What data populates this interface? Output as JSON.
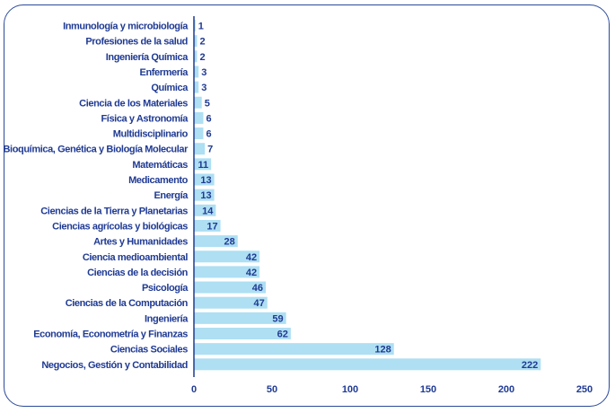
{
  "chart_data": {
    "type": "bar",
    "orientation": "horizontal",
    "categories": [
      "Inmunología y microbiología",
      "Profesiones de la salud",
      "Ingeniería Química",
      "Enfermería",
      "Química",
      "Ciencia de los Materiales",
      "Física y Astronomía",
      "Multidisciplinario",
      "Bioquímica, Genética y Biología Molecular",
      "Matemáticas",
      "Medicamento",
      "Energía",
      "Ciencias de la Tierra y Planetarias",
      "Ciencias agrícolas y biológicas",
      "Artes y Humanidades",
      "Ciencia medioambiental",
      "Ciencias de la decisión",
      "Psicología",
      "Ciencias de la Computación",
      "Ingeniería",
      "Economía, Econometría y Finanzas",
      "Ciencias Sociales",
      "Negocios, Gestión y Contabilidad"
    ],
    "values": [
      1,
      2,
      2,
      3,
      3,
      5,
      6,
      6,
      7,
      11,
      13,
      13,
      14,
      17,
      28,
      42,
      42,
      46,
      47,
      59,
      62,
      128,
      222
    ],
    "xlim": [
      0,
      250
    ],
    "xticks": [
      0,
      50,
      100,
      150,
      200,
      250
    ],
    "data_labels": true,
    "grid": false,
    "legend": "none",
    "colors": {
      "bar": "#aedff3",
      "text": "#1f3a93",
      "axis": "#1f3a93",
      "frame": "#2b4a9b"
    }
  }
}
